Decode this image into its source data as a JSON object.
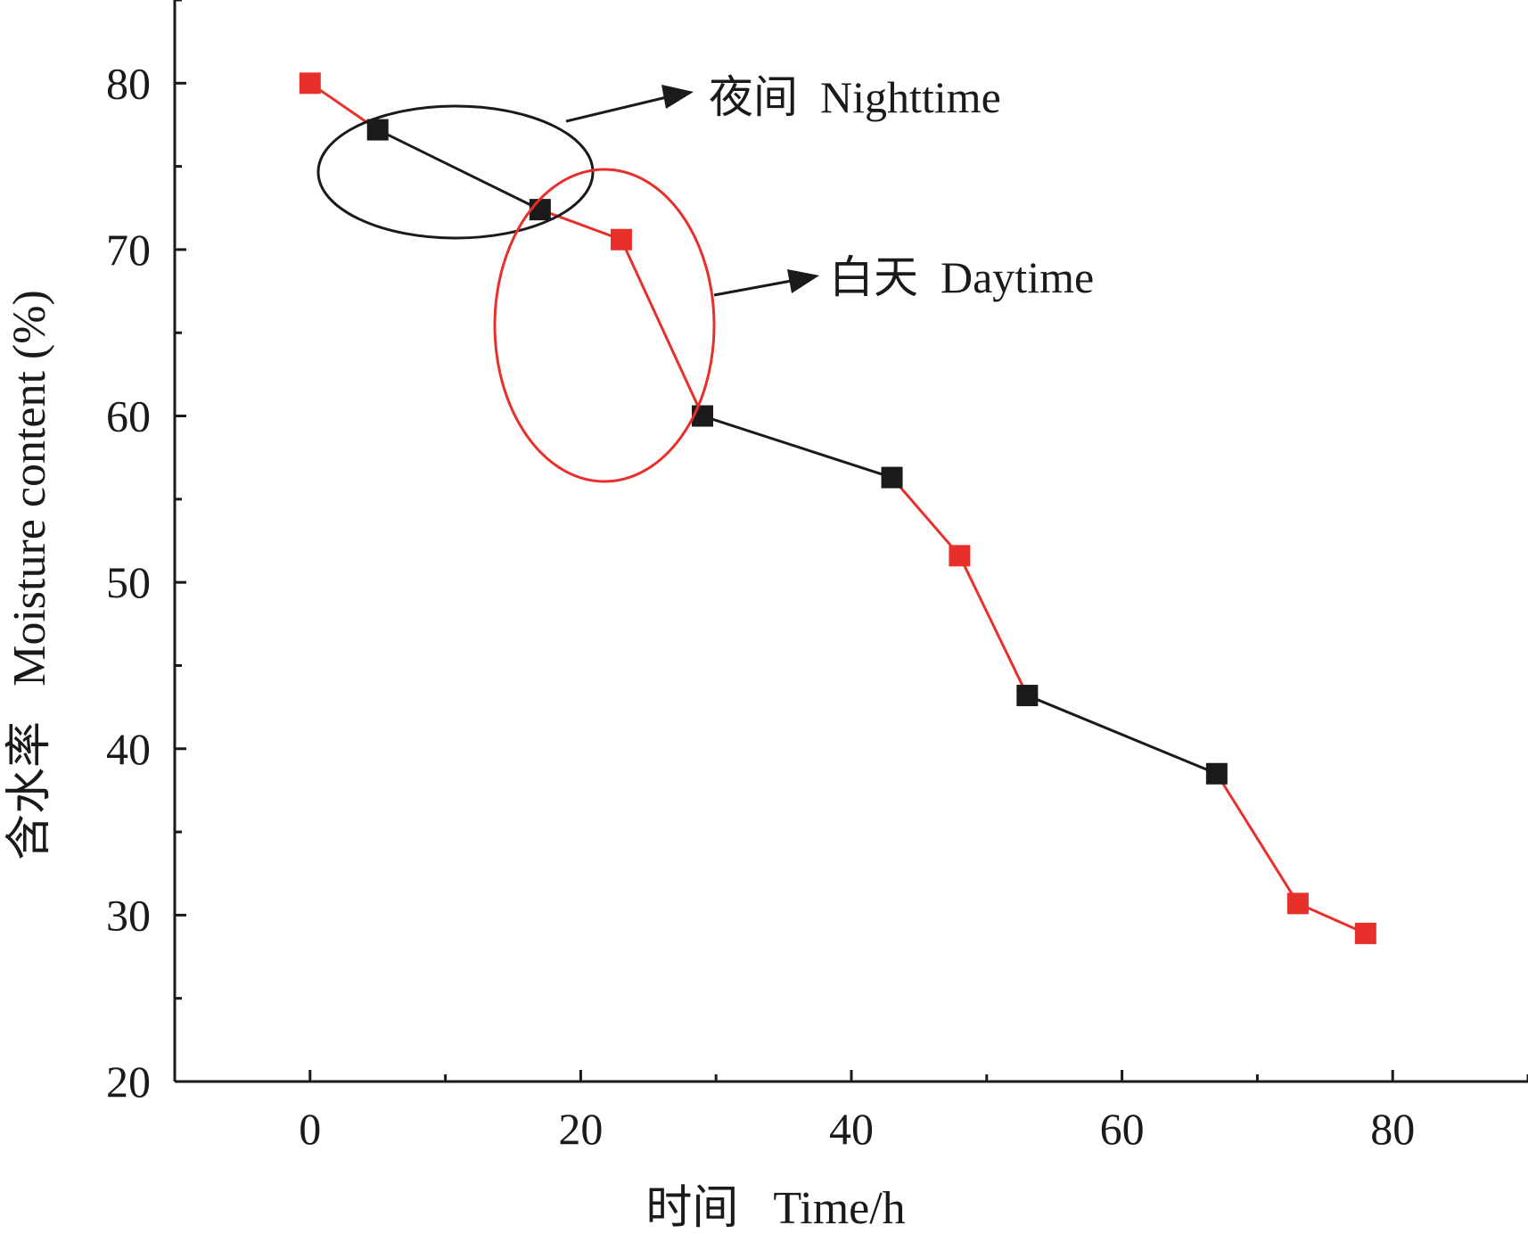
{
  "chart_data": {
    "type": "line",
    "xlabel": "时间   Time/h",
    "ylabel": "含水率   Moisture content (%)",
    "xlim": [
      -10,
      90
    ],
    "ylim": [
      20,
      85
    ],
    "x_ticks": [
      0,
      20,
      40,
      60,
      80
    ],
    "x_tick_labels": [
      "0",
      "20",
      "40",
      "60",
      "80"
    ],
    "x_minor_ticks": [
      10,
      30,
      50,
      70,
      90
    ],
    "y_ticks": [
      20,
      30,
      40,
      50,
      60,
      70,
      80
    ],
    "y_tick_labels": [
      "20",
      "30",
      "40",
      "50",
      "60",
      "70",
      "80"
    ],
    "y_minor_ticks": [
      25,
      35,
      45,
      55,
      65,
      75,
      85
    ],
    "grid": false,
    "colors": {
      "day": "#e8302b",
      "night": "#1a1a1a"
    },
    "points": [
      {
        "x": 0,
        "y": 80.0,
        "period": "day"
      },
      {
        "x": 5,
        "y": 77.2,
        "period": "night"
      },
      {
        "x": 17,
        "y": 72.4,
        "period": "night"
      },
      {
        "x": 23,
        "y": 70.6,
        "period": "day"
      },
      {
        "x": 29,
        "y": 60.0,
        "period": "night"
      },
      {
        "x": 43,
        "y": 56.3,
        "period": "night"
      },
      {
        "x": 48,
        "y": 51.6,
        "period": "day"
      },
      {
        "x": 53,
        "y": 43.2,
        "period": "night"
      },
      {
        "x": 67,
        "y": 38.5,
        "period": "night"
      },
      {
        "x": 73,
        "y": 30.7,
        "period": "day"
      },
      {
        "x": 78,
        "y": 28.9,
        "period": "day"
      }
    ],
    "segments": [
      {
        "from": 0,
        "to": 1,
        "period": "day"
      },
      {
        "from": 1,
        "to": 2,
        "period": "night"
      },
      {
        "from": 2,
        "to": 3,
        "period": "day"
      },
      {
        "from": 3,
        "to": 4,
        "period": "day"
      },
      {
        "from": 4,
        "to": 5,
        "period": "night"
      },
      {
        "from": 5,
        "to": 6,
        "period": "day"
      },
      {
        "from": 6,
        "to": 7,
        "period": "day"
      },
      {
        "from": 7,
        "to": 8,
        "period": "night"
      },
      {
        "from": 8,
        "to": 9,
        "period": "day"
      },
      {
        "from": 9,
        "to": 10,
        "period": "day"
      }
    ],
    "annotations": [
      {
        "text": "夜间  Nighttime",
        "period": "night"
      },
      {
        "text": "白天  Daytime",
        "period": "day"
      }
    ]
  }
}
